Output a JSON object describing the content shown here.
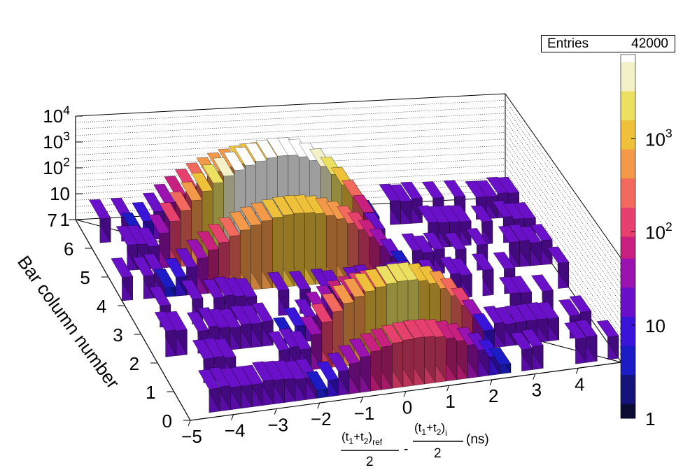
{
  "stats": {
    "label": "Entries",
    "value": "42000"
  },
  "colors": {
    "palette": [
      "#0b0b33",
      "#14147a",
      "#1c1cc4",
      "#3a14d8",
      "#6a10c8",
      "#9a12b0",
      "#c8207e",
      "#e6406e",
      "#f26a5e",
      "#f39a4a",
      "#efc03a",
      "#ece062",
      "#f4f0c8",
      "#ffffff"
    ]
  },
  "chart_data": {
    "type": "lego3d",
    "title": "",
    "xlabel": {
      "num_ref": "(t",
      "sub1": "1",
      "plus": "+t",
      "sub2": "2",
      "close_ref": ")",
      "ref_sub": "ref",
      "minus": "-",
      "num_i": "(t",
      "sub1_i": "1",
      "plus_i": "+t",
      "sub2_i": "2",
      "close_i": ")",
      "i_sub": "i",
      "den": "2",
      "unit": "(ns)"
    },
    "ylabel": "Bar column number",
    "x_ticks": [
      "−5",
      "−4",
      "−3",
      "−2",
      "−1",
      "0",
      "1",
      "2",
      "3",
      "4"
    ],
    "x_tick_values": [
      -5,
      -4,
      -3,
      -2,
      -1,
      0,
      1,
      2,
      3,
      4
    ],
    "y_ticks": [
      "0",
      "1",
      "2",
      "3",
      "4",
      "5",
      "6",
      "7"
    ],
    "z_ticks": [
      {
        "base": "10",
        "exp": "4",
        "value": 10000
      },
      {
        "base": "10",
        "exp": "3",
        "value": 1000
      },
      {
        "base": "10",
        "exp": "2",
        "value": 100
      },
      {
        "base": "10",
        "exp": "",
        "value": 10
      },
      {
        "base": "1",
        "exp": "",
        "value": 1
      }
    ],
    "palette_ticks": [
      {
        "base": "10",
        "exp": "3",
        "value": 1000
      },
      {
        "base": "10",
        "exp": "2",
        "value": 100
      },
      {
        "base": "10",
        "exp": "",
        "value": 10
      },
      {
        "base": "1",
        "exp": "",
        "value": 1
      }
    ],
    "xlim": [
      -5,
      5
    ],
    "ylim": [
      0,
      7
    ],
    "zlim": [
      1,
      10000
    ],
    "z_scale": "log",
    "grid": true,
    "description_note": "2D histogram (time difference vs bar column) drawn as log-z lego plot",
    "bins": {
      "x_edges_ns": {
        "start": -5,
        "step": 0.25,
        "count": 40
      },
      "y_rows": [
        0.5,
        1.5,
        2.5,
        3.5,
        4.5,
        5.5,
        6.5
      ],
      "peaks": [
        {
          "row": 1.5,
          "center_ns": 0.6,
          "peak_count": 900
        },
        {
          "row": 1.5,
          "center_ns": -0.3,
          "peak_count": 400
        },
        {
          "row": 5.5,
          "center_ns": -1.6,
          "peak_count": 3000
        },
        {
          "row": 5.5,
          "center_ns": -0.7,
          "peak_count": 9000
        },
        {
          "row": 5.5,
          "center_ns": -2.5,
          "peak_count": 150
        }
      ],
      "background_count": 4
    }
  }
}
